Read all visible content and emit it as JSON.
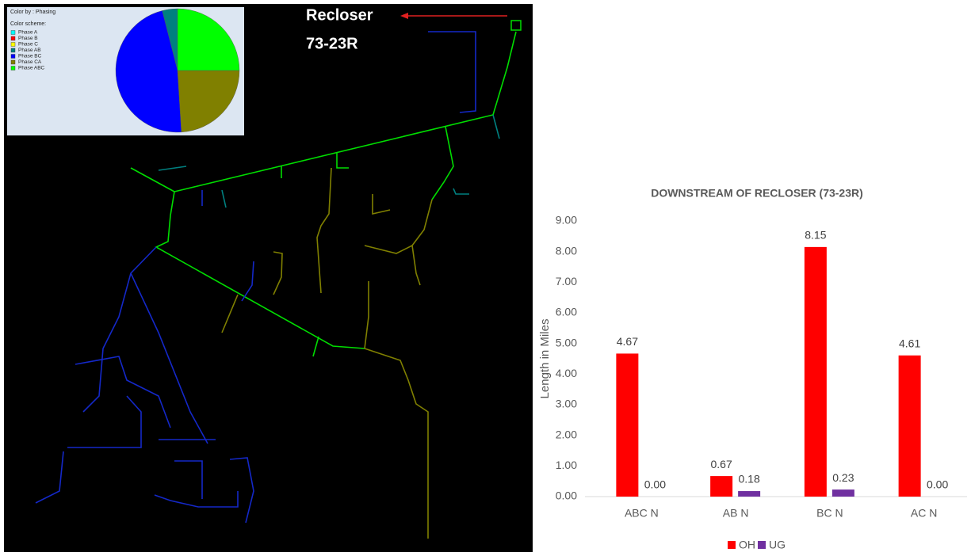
{
  "map": {
    "recloser_label": "Recloser",
    "recloser_id": "73-23R"
  },
  "chart_data": [
    {
      "type": "pie",
      "title": "Color by : Phasing",
      "subtitle": "Color scheme:",
      "categories": [
        "Phase A",
        "Phase B",
        "Phase C",
        "Phase AB",
        "Phase BC",
        "Phase CA",
        "Phase ABC"
      ],
      "values": [
        0,
        0,
        0,
        4,
        47,
        24,
        25
      ],
      "colors": [
        "#00ffff",
        "#ff0000",
        "#ffff00",
        "#008080",
        "#0000ff",
        "#808000",
        "#00ff00"
      ],
      "direction": "counterclockwise",
      "start": "top"
    },
    {
      "type": "bar",
      "title": "DOWNSTREAM OF RECLOSER (73-23R)",
      "y_label": "Length in Miles",
      "categories": [
        "ABC N",
        "AB N",
        "BC N",
        "AC N"
      ],
      "series": [
        {
          "name": "OH",
          "color": "#ff0000",
          "values": [
            4.67,
            0.67,
            8.15,
            4.61
          ],
          "value_labels": [
            "4.67",
            "0.67",
            "8.15",
            "4.61"
          ]
        },
        {
          "name": "UG",
          "color": "#7030a0",
          "values": [
            0,
            0.18,
            0.23,
            0
          ],
          "value_labels": [
            "0.00",
            "0.18",
            "0.23",
            "0.00"
          ]
        }
      ],
      "ylim": [
        0,
        9
      ],
      "yticks": [
        {
          "value": 0,
          "label": "0.00"
        },
        {
          "value": 1,
          "label": "1.00"
        },
        {
          "value": 2,
          "label": "2.00"
        },
        {
          "value": 3,
          "label": "3.00"
        },
        {
          "value": 4,
          "label": "4.00"
        },
        {
          "value": 5,
          "label": "5.00"
        },
        {
          "value": 6,
          "label": "6.00"
        },
        {
          "value": 7,
          "label": "7.00"
        },
        {
          "value": 8,
          "label": "8.00"
        },
        {
          "value": 9,
          "label": "9.00"
        }
      ],
      "grid": false,
      "legend": "bottom"
    }
  ]
}
